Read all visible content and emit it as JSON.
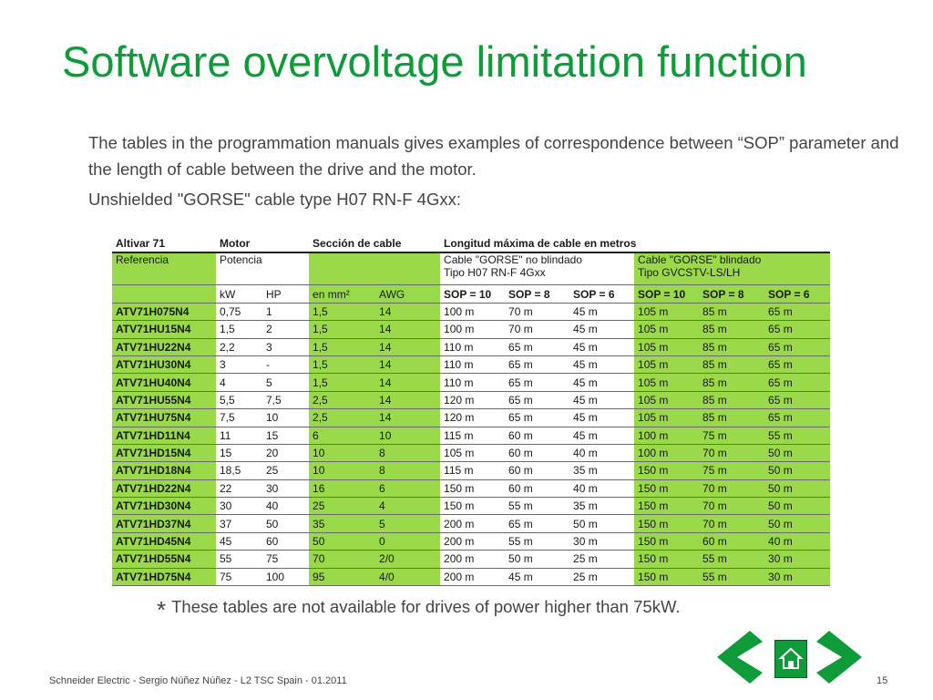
{
  "title": "Software overvoltage limitation function",
  "intro": "The tables in the programmation manuals gives examples of correspondence between “SOP” parameter and the length of cable between the drive and the motor.",
  "subtitle": "Unshielded \"GORSE\" cable type H07 RN-F 4Gxx:",
  "table": {
    "header": {
      "col1": "Altivar 71",
      "col2": "Motor",
      "col3": "Sección de cable",
      "col4": "Longitud máxima de cable en metros"
    },
    "subheader": {
      "col1": "Referencia",
      "col2": "Potencia",
      "unshielded_line1": "Cable \"GORSE\" no blindado",
      "unshielded_line2": "Tipo H07 RN-F 4Gxx",
      "shielded_line1": "Cable \"GORSE\" blindado",
      "shielded_line2": "Tipo GVCSTV-LS/LH"
    },
    "units": {
      "kw": "kW",
      "hp": "HP",
      "mm2": "en mm²",
      "awg": "AWG",
      "sop10": "SOP = 10",
      "sop8": "SOP = 8",
      "sop6": "SOP = 6"
    },
    "rows": [
      [
        "ATV71H075N4",
        "0,75",
        "1",
        "1,5",
        "14",
        "100 m",
        "70 m",
        "45 m",
        "105 m",
        "85 m",
        "65 m"
      ],
      [
        "ATV71HU15N4",
        "1,5",
        "2",
        "1,5",
        "14",
        "100 m",
        "70 m",
        "45 m",
        "105 m",
        "85 m",
        "65 m"
      ],
      [
        "ATV71HU22N4",
        "2,2",
        "3",
        "1,5",
        "14",
        "110 m",
        "65 m",
        "45 m",
        "105 m",
        "85 m",
        "65 m"
      ],
      [
        "ATV71HU30N4",
        "3",
        "-",
        "1,5",
        "14",
        "110 m",
        "65 m",
        "45 m",
        "105 m",
        "85 m",
        "65 m"
      ],
      [
        "ATV71HU40N4",
        "4",
        "5",
        "1,5",
        "14",
        "110 m",
        "65 m",
        "45 m",
        "105 m",
        "85 m",
        "65 m"
      ],
      [
        "ATV71HU55N4",
        "5,5",
        "7,5",
        "2,5",
        "14",
        "120 m",
        "65 m",
        "45 m",
        "105 m",
        "85 m",
        "65 m"
      ],
      [
        "ATV71HU75N4",
        "7,5",
        "10",
        "2,5",
        "14",
        "120 m",
        "65 m",
        "45 m",
        "105 m",
        "85 m",
        "65 m"
      ],
      [
        "ATV71HD11N4",
        "11",
        "15",
        "6",
        "10",
        "115 m",
        "60 m",
        "45 m",
        "100 m",
        "75 m",
        "55 m"
      ],
      [
        "ATV71HD15N4",
        "15",
        "20",
        "10",
        "8",
        "105 m",
        "60 m",
        "40 m",
        "100 m",
        "70 m",
        "50 m"
      ],
      [
        "ATV71HD18N4",
        "18,5",
        "25",
        "10",
        "8",
        "115 m",
        "60 m",
        "35 m",
        "150 m",
        "75 m",
        "50 m"
      ],
      [
        "ATV71HD22N4",
        "22",
        "30",
        "16",
        "6",
        "150 m",
        "60 m",
        "40 m",
        "150 m",
        "70 m",
        "50 m"
      ],
      [
        "ATV71HD30N4",
        "30",
        "40",
        "25",
        "4",
        "150 m",
        "55 m",
        "35 m",
        "150 m",
        "70 m",
        "50 m"
      ],
      [
        "ATV71HD37N4",
        "37",
        "50",
        "35",
        "5",
        "200 m",
        "65 m",
        "50 m",
        "150 m",
        "70 m",
        "50 m"
      ],
      [
        "ATV71HD45N4",
        "45",
        "60",
        "50",
        "0",
        "200 m",
        "55 m",
        "30 m",
        "150 m",
        "60 m",
        "40 m"
      ],
      [
        "ATV71HD55N4",
        "55",
        "75",
        "70",
        "2/0",
        "200 m",
        "50 m",
        "25 m",
        "150 m",
        "55 m",
        "30 m"
      ],
      [
        "ATV71HD75N4",
        "75",
        "100",
        "95",
        "4/0",
        "200 m",
        "45 m",
        "25 m",
        "150 m",
        "55 m",
        "30 m"
      ]
    ]
  },
  "note": {
    "star": "*",
    "text": "These tables are not available for drives of power higher than 75kW."
  },
  "footer": "Schneider Electric - Sergio Núñez Núñez - L2 TSC Spain - 01.2011",
  "page_number": "15",
  "colors": {
    "accent": "#0f9b3a",
    "table_green": "#9ad94a"
  },
  "nav": {
    "prev_icon": "chevron-left-icon",
    "home_icon": "home-icon",
    "next_icon": "chevron-right-icon"
  }
}
